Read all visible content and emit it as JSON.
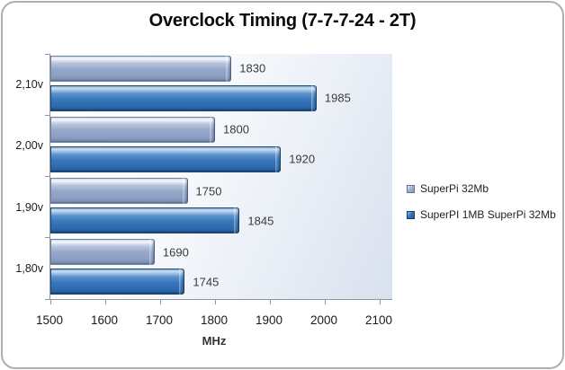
{
  "chart_data": {
    "type": "bar",
    "orientation": "horizontal",
    "title": "Overclock Timing (7-7-7-24 - 2T)",
    "xlabel": "MHz",
    "ylabel": "",
    "categories": [
      "2,10v",
      "2,00v",
      "1,90v",
      "1,80v"
    ],
    "categories_order": "top-to-bottom",
    "series": [
      {
        "name": "SuperPi 32Mb",
        "color": "#96a8c9",
        "values": [
          1830,
          1800,
          1750,
          1690
        ]
      },
      {
        "name": "SuperPI 1MB SuperPi 32Mb",
        "color": "#2f6cb3",
        "values": [
          1985,
          1920,
          1845,
          1745
        ]
      }
    ],
    "xlim": [
      1500,
      2100
    ],
    "xticks": [
      1500,
      1600,
      1700,
      1800,
      1900,
      2000,
      2100
    ],
    "grid": false,
    "data_labels": true,
    "legend_position": "right",
    "plot_background": [
      "#ffffff",
      "#d8e1ee"
    ],
    "axis_color": "#8e979f"
  },
  "legend": {
    "items": [
      {
        "label": "SuperPi 32Mb",
        "swatch_color": "#96a8c9",
        "icon": "square-swatch-icon"
      },
      {
        "label": "SuperPI 1MB SuperPi 32Mb",
        "swatch_color": "#2f6cb3",
        "icon": "square-swatch-icon"
      }
    ]
  }
}
